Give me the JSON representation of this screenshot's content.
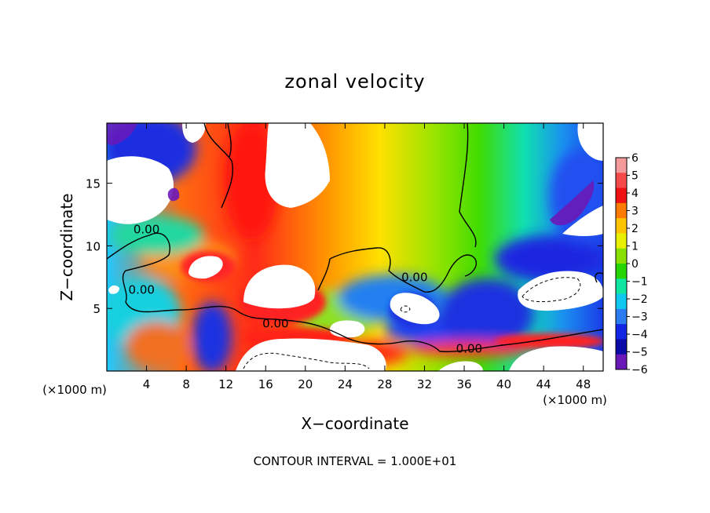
{
  "chart_data": {
    "type": "heatmap",
    "title": "zonal velocity",
    "xlabel": "X−coordinate",
    "ylabel": "Z−coordinate",
    "x_unit": "(×1000 m)",
    "z_unit": "(×1000 m)",
    "xlim": [
      0,
      50
    ],
    "ylim": [
      0,
      19.8
    ],
    "x_ticks": [
      4,
      8,
      12,
      16,
      20,
      24,
      28,
      32,
      36,
      40,
      44,
      48
    ],
    "y_ticks": [
      5,
      10,
      15
    ],
    "colorbar": {
      "range": [
        -6,
        6
      ],
      "ticks": [
        "6",
        "5",
        "4",
        "3",
        "2",
        "1",
        "0",
        "−1",
        "−2",
        "−3",
        "−4",
        "−5",
        "−6"
      ],
      "colors": [
        "#f49a9a",
        "#f54a4a",
        "#ee1111",
        "#ff7a00",
        "#ffc400",
        "#e8f000",
        "#88e000",
        "#26d400",
        "#10e6a0",
        "#10c8f0",
        "#2a7cf0",
        "#1226e6",
        "#0a0aa8",
        "#6a18b8"
      ]
    },
    "contour_labels": [
      {
        "text": "0.00",
        "x": 4,
        "z": 11.3
      },
      {
        "text": "0.00",
        "x": 3.5,
        "z": 6.5
      },
      {
        "text": "0.00",
        "x": 17,
        "z": 3.8
      },
      {
        "text": "0.00",
        "x": 31,
        "z": 7.5
      },
      {
        "text": "0.00",
        "x": 36.5,
        "z": 1.8
      }
    ],
    "contour_interval": "CONTOUR INTERVAL = 1.000E+01"
  }
}
